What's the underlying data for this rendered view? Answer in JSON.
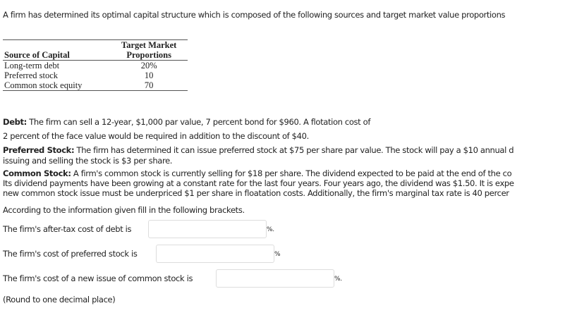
{
  "intro": "A firm has determined its optimal capital structure which is composed of the following sources and target market value proportions",
  "table": {
    "headers": [
      "Source of Capital",
      "Target Market Proportions"
    ],
    "header_line1": "Target Market",
    "header_line2": "Proportions",
    "rows": [
      [
        "Long-term debt",
        "20%"
      ],
      [
        "Preferred stock",
        "10"
      ],
      [
        "Common stock equity",
        "70"
      ]
    ]
  },
  "debt": {
    "label": "Debt:",
    "line1": " The firm can sell a 12-year, $1,000 par value, 7 percent bond for $960. A flotation cost of",
    "line2": "2 percent of the face value would be required in addition to the discount of $40."
  },
  "preferred": {
    "label": "Preferred Stock:",
    "line1": " The firm has determined it can issue preferred stock at $75 per share par value. The stock will pay a $10 annual d",
    "line2": "issuing and selling the stock is $3 per share."
  },
  "common": {
    "label": "Common Stock:",
    "line1": " A firm's common stock is currently selling for $18 per share. The dividend expected to be paid at the end of the co",
    "line2": "Its dividend payments have been growing at a constant rate for the last four years. Four years ago, the dividend was $1.50. It is expe",
    "line3": "new common stock issue must be underpriced $1 per share in floatation costs. Additionally, the firm's marginal tax rate is 40 percer"
  },
  "instruction": "According to the information given fill in the following brackets.",
  "questions": [
    {
      "label": "The firm's after-tax cost of debt is",
      "value": "",
      "suffix": "%."
    },
    {
      "label": "The firm's cost of preferred stock is",
      "value": "",
      "suffix": "%"
    },
    {
      "label": "The firm's cost of a new issue of common stock is",
      "value": "",
      "suffix": "%."
    }
  ],
  "note": "(Round to one decimal place)"
}
